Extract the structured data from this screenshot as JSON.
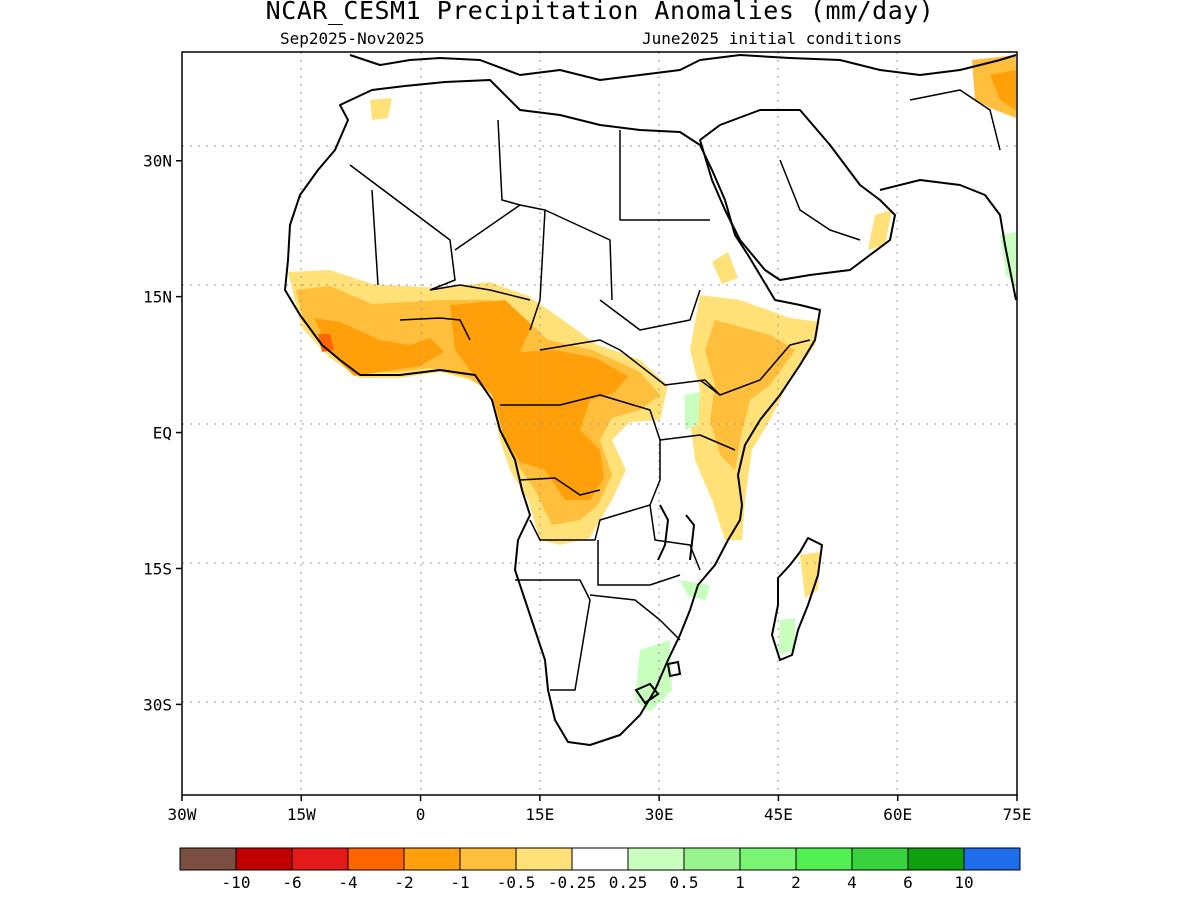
{
  "header": {
    "title": "NCAR_CESM1 Precipitation Anomalies (mm/day)",
    "period": "Sep2025-Nov2025",
    "initial_conditions": "June2025 initial conditions"
  },
  "map": {
    "region": "Africa",
    "lon_range": [
      -30,
      75
    ],
    "lat_range": [
      -40,
      42
    ],
    "x_ticks": [
      {
        "lon": -30,
        "label": "30W"
      },
      {
        "lon": -15,
        "label": "15W"
      },
      {
        "lon": 0,
        "label": "0"
      },
      {
        "lon": 15,
        "label": "15E"
      },
      {
        "lon": 30,
        "label": "30E"
      },
      {
        "lon": 45,
        "label": "45E"
      },
      {
        "lon": 60,
        "label": "60E"
      },
      {
        "lon": 75,
        "label": "75E"
      }
    ],
    "y_ticks": [
      {
        "lat": 30,
        "label": "30N"
      },
      {
        "lat": 15,
        "label": "15N"
      },
      {
        "lat": 0,
        "label": "EQ"
      },
      {
        "lat": -15,
        "label": "15S"
      },
      {
        "lat": -30,
        "label": "30S"
      }
    ]
  },
  "colorbar": {
    "colors": [
      "#7b4e42",
      "#c00000",
      "#e41a1a",
      "#ff6400",
      "#ffa00a",
      "#ffbe3c",
      "#ffe178",
      "#ffffff",
      "#c8ffbe",
      "#96f58c",
      "#78f573",
      "#50f050",
      "#37d23c",
      "#0fa00f",
      "#1e6eeb"
    ],
    "labels": [
      "-10",
      "-6",
      "-4",
      "-2",
      "-1",
      "-0.5",
      "-0.25",
      "0.25",
      "0.5",
      "1",
      "2",
      "4",
      "6",
      "10"
    ]
  }
}
